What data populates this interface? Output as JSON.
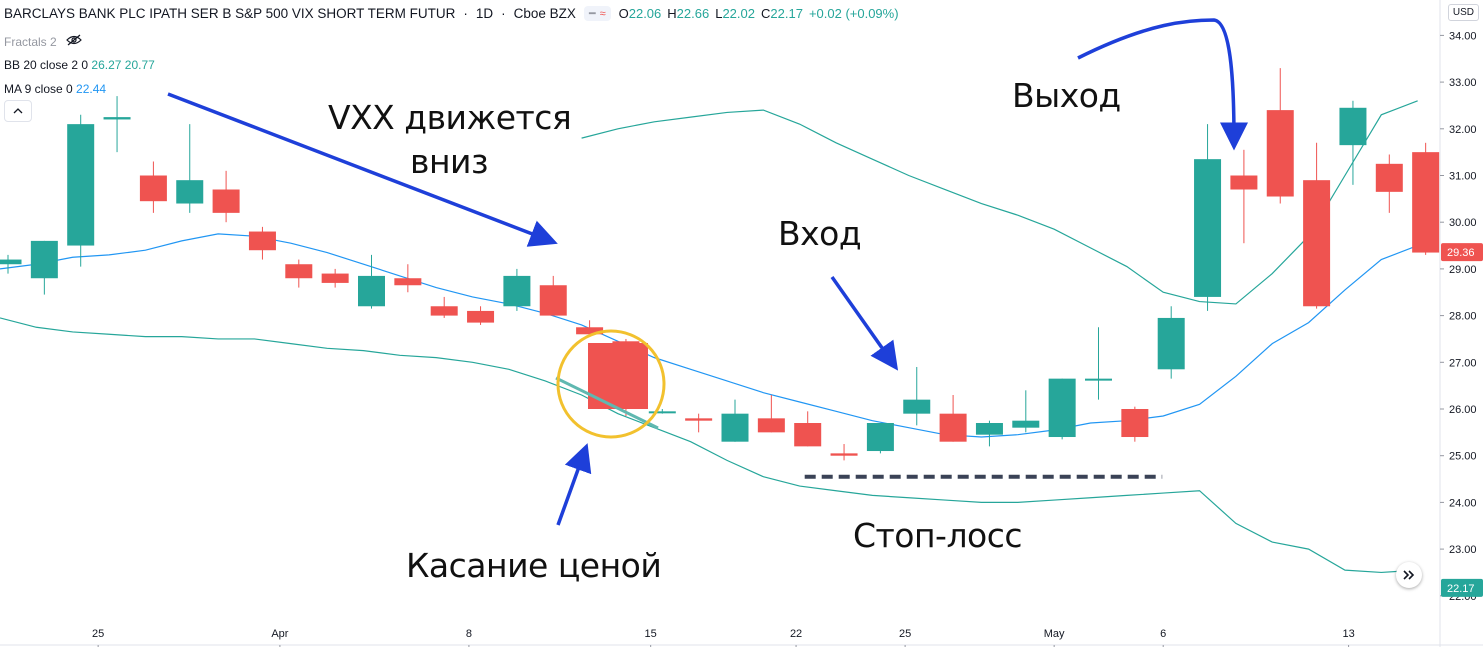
{
  "header": {
    "symbol": "BARCLAYS BANK PLC IPATH SER B S&P 500 VIX SHORT TERM FUTUR",
    "sep1": "·",
    "interval": "1D",
    "sep2": "·",
    "exchange": "Cboe BZX",
    "ohlc": {
      "o_label": "O",
      "o": "22.06",
      "h_label": "H",
      "h": "22.66",
      "l_label": "L",
      "l": "22.02",
      "c_label": "C",
      "c": "22.17",
      "change": "+0.02 (+0.09%)"
    }
  },
  "indicators": {
    "fractals": "Fractals 2",
    "bb_label": "BB 20 close 2 0",
    "bb_v1": "26.27",
    "bb_v2": "20.77",
    "ma_label": "MA 9 close 0",
    "ma_v": "22.44"
  },
  "annotations": {
    "down": "VXX движется",
    "down2": "вниз",
    "touch": "Касание ценой",
    "entry": "Вход",
    "exit": "Выход",
    "stop": "Стоп-лосс"
  },
  "axis": {
    "currency": "USD",
    "last_price": "29.36",
    "current_price": "22.17"
  },
  "colors": {
    "up": "#26a69a",
    "down": "#ef5350",
    "bb": "#26a69a",
    "ma": "#2196f3",
    "arrow": "#1e3fd9",
    "circle": "#f2c12e",
    "stop": "#3a4256"
  },
  "chart_data": {
    "type": "candlestick",
    "ylim": [
      22.0,
      34.5
    ],
    "y_ticks": [
      22.0,
      23.0,
      24.0,
      25.0,
      26.0,
      27.0,
      28.0,
      29.0,
      30.0,
      31.0,
      32.0,
      33.0,
      34.0
    ],
    "x_ticks": [
      "25",
      "Apr",
      "8",
      "15",
      "22",
      "25",
      "May",
      "6",
      "13"
    ],
    "candles": [
      {
        "o": 29.1,
        "h": 29.3,
        "l": 28.9,
        "c": 29.2
      },
      {
        "o": 28.8,
        "h": 29.6,
        "l": 28.45,
        "c": 29.6
      },
      {
        "o": 29.5,
        "h": 32.3,
        "l": 29.05,
        "c": 32.1
      },
      {
        "o": 32.2,
        "h": 32.7,
        "l": 31.5,
        "c": 32.25
      },
      {
        "o": 31.0,
        "h": 31.3,
        "l": 30.2,
        "c": 30.45
      },
      {
        "o": 30.4,
        "h": 32.1,
        "l": 30.2,
        "c": 30.9
      },
      {
        "o": 30.7,
        "h": 31.1,
        "l": 30.0,
        "c": 30.2
      },
      {
        "o": 29.8,
        "h": 29.9,
        "l": 29.2,
        "c": 29.4
      },
      {
        "o": 29.1,
        "h": 29.2,
        "l": 28.6,
        "c": 28.8
      },
      {
        "o": 28.9,
        "h": 29.0,
        "l": 28.6,
        "c": 28.7
      },
      {
        "o": 28.2,
        "h": 29.3,
        "l": 28.15,
        "c": 28.85
      },
      {
        "o": 28.8,
        "h": 29.1,
        "l": 28.5,
        "c": 28.65
      },
      {
        "o": 28.2,
        "h": 28.4,
        "l": 27.95,
        "c": 28.0
      },
      {
        "o": 28.1,
        "h": 28.2,
        "l": 27.8,
        "c": 27.85
      },
      {
        "o": 28.2,
        "h": 29.0,
        "l": 28.1,
        "c": 28.85
      },
      {
        "o": 28.65,
        "h": 28.85,
        "l": 28.0,
        "c": 28.0
      },
      {
        "o": 27.75,
        "h": 27.9,
        "l": 27.6,
        "c": 27.6
      },
      {
        "o": 27.45,
        "h": 27.5,
        "l": 25.85,
        "c": 26.05
      },
      {
        "o": 25.95,
        "h": 26.0,
        "l": 25.9,
        "c": 25.95
      },
      {
        "o": 25.8,
        "h": 25.9,
        "l": 25.5,
        "c": 25.75
      },
      {
        "o": 25.3,
        "h": 26.2,
        "l": 25.3,
        "c": 25.9
      },
      {
        "o": 25.8,
        "h": 26.3,
        "l": 25.5,
        "c": 25.5
      },
      {
        "o": 25.7,
        "h": 25.95,
        "l": 25.2,
        "c": 25.2
      },
      {
        "o": 25.05,
        "h": 25.25,
        "l": 24.9,
        "c": 25.0
      },
      {
        "o": 25.1,
        "h": 25.7,
        "l": 25.05,
        "c": 25.7
      },
      {
        "o": 25.9,
        "h": 26.9,
        "l": 25.65,
        "c": 26.2
      },
      {
        "o": 25.9,
        "h": 26.3,
        "l": 25.3,
        "c": 25.3
      },
      {
        "o": 25.45,
        "h": 25.75,
        "l": 25.2,
        "c": 25.7
      },
      {
        "o": 25.6,
        "h": 26.4,
        "l": 25.5,
        "c": 25.75
      },
      {
        "o": 25.4,
        "h": 26.65,
        "l": 25.35,
        "c": 26.65
      },
      {
        "o": 26.65,
        "h": 27.75,
        "l": 26.2,
        "c": 26.65
      },
      {
        "o": 26.0,
        "h": 26.05,
        "l": 25.3,
        "c": 25.4
      },
      {
        "o": 26.85,
        "h": 28.2,
        "l": 26.65,
        "c": 27.95
      },
      {
        "o": 28.4,
        "h": 32.1,
        "l": 28.1,
        "c": 31.35
      },
      {
        "o": 31.0,
        "h": 31.55,
        "l": 29.55,
        "c": 30.7
      },
      {
        "o": 32.4,
        "h": 33.3,
        "l": 30.4,
        "c": 30.55
      },
      {
        "o": 30.9,
        "h": 31.7,
        "l": 28.15,
        "c": 28.2
      },
      {
        "o": 31.65,
        "h": 32.6,
        "l": 30.8,
        "c": 32.45
      },
      {
        "o": 31.25,
        "h": 31.45,
        "l": 30.2,
        "c": 30.65
      },
      {
        "o": 31.5,
        "h": 31.7,
        "l": 29.3,
        "c": 29.35
      }
    ],
    "bb_upper": [
      null,
      null,
      null,
      null,
      null,
      null,
      null,
      null,
      null,
      null,
      null,
      null,
      null,
      null,
      null,
      null,
      31.8,
      32.0,
      32.15,
      32.25,
      32.35,
      32.4,
      32.1,
      31.7,
      31.35,
      31.0,
      30.7,
      30.4,
      30.15,
      29.85,
      29.45,
      29.05,
      28.5,
      28.3,
      28.25,
      28.9,
      29.7,
      31.0,
      32.3,
      32.6
    ],
    "bb_middle": [
      29.6,
      29.45,
      29.75,
      29.8,
      29.95,
      30.2,
      30.2,
      30.1,
      29.9,
      29.6,
      29.35,
      29.1,
      28.95,
      28.8,
      28.6,
      28.3,
      27.95,
      27.6,
      27.25,
      27.0,
      26.75,
      26.45,
      26.2,
      25.95,
      25.75,
      25.6,
      25.55,
      25.55,
      25.6,
      25.7,
      25.8,
      25.85,
      25.9,
      26.05,
      26.7,
      27.25,
      27.8,
      28.0,
      28.8,
      29.35
    ],
    "bb_lower": [
      27.95,
      27.75,
      27.65,
      27.6,
      27.55,
      27.55,
      27.5,
      27.5,
      27.4,
      27.3,
      27.25,
      27.15,
      27.1,
      27.0,
      26.85,
      26.6,
      26.3,
      25.9,
      25.6,
      25.3,
      24.9,
      24.55,
      24.35,
      24.25,
      24.15,
      24.1,
      24.05,
      24.0,
      24.0,
      24.05,
      24.1,
      24.15,
      24.2,
      24.25,
      23.55,
      23.15,
      23.0,
      22.55,
      22.5,
      22.55
    ],
    "ma": [
      29.0,
      29.1,
      29.25,
      29.3,
      29.4,
      29.6,
      29.75,
      29.7,
      29.55,
      29.35,
      29.1,
      28.85,
      28.6,
      28.4,
      28.25,
      28.05,
      27.8,
      27.45,
      27.1,
      26.85,
      26.6,
      26.35,
      26.15,
      25.95,
      25.75,
      25.6,
      25.45,
      25.4,
      25.45,
      25.55,
      25.7,
      25.75,
      25.85,
      26.1,
      26.7,
      27.4,
      27.85,
      28.55,
      29.2,
      29.5
    ],
    "stop_loss": 24.55,
    "stop_range": [
      22,
      32
    ]
  }
}
